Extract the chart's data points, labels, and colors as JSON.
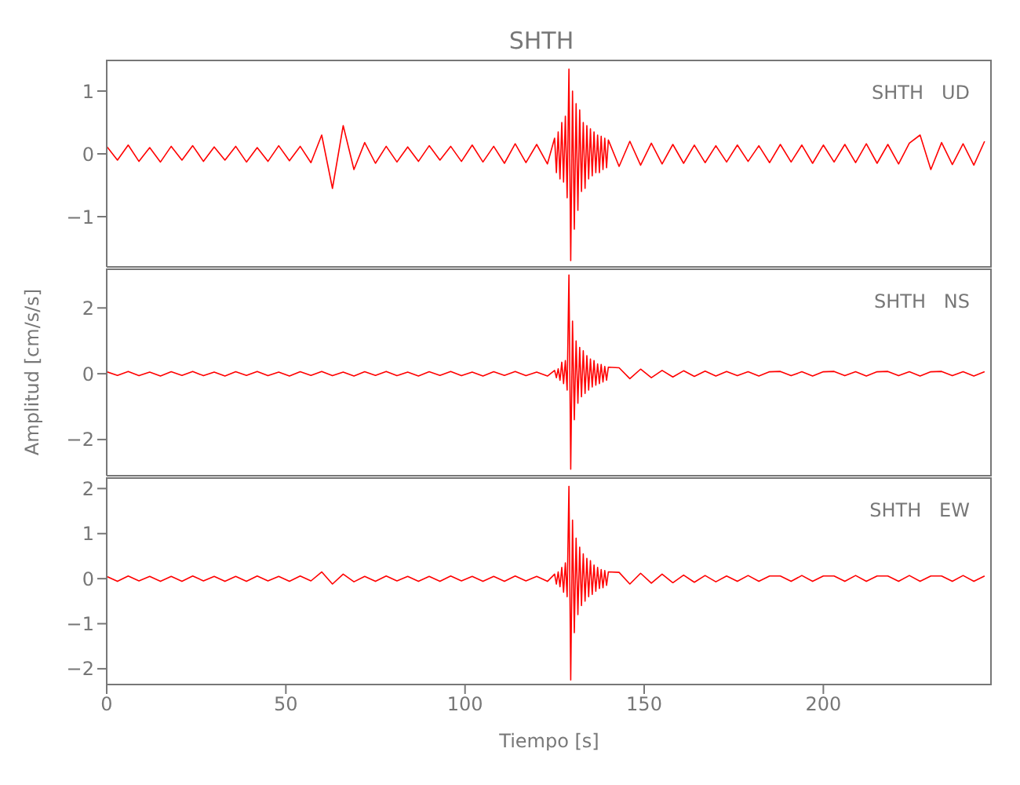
{
  "chart_data": [
    {
      "type": "line",
      "title": "SHTH",
      "annotations": [
        "SHTH   UD"
      ],
      "xlim": [
        0,
        247
      ],
      "xticks": [
        0,
        50,
        100,
        150,
        200
      ],
      "ylim": [
        -1.8,
        1.5
      ],
      "yticks": [
        -1,
        0,
        1
      ],
      "tick_labels": "y",
      "x": [
        0,
        3,
        6,
        9,
        12,
        15,
        18,
        21,
        24,
        27,
        30,
        33,
        36,
        39,
        42,
        45,
        48,
        51,
        54,
        57,
        60,
        63,
        66,
        69,
        72,
        75,
        78,
        81,
        84,
        87,
        90,
        93,
        96,
        99,
        102,
        105,
        108,
        111,
        114,
        117,
        120,
        123,
        125,
        125.5,
        126,
        126.5,
        127,
        127.5,
        128,
        128.5,
        129,
        129.5,
        130,
        130.5,
        131,
        131.5,
        132,
        132.5,
        133,
        133.5,
        134,
        134.5,
        135,
        135.5,
        136,
        136.5,
        137,
        137.5,
        138,
        138.5,
        139,
        139.5,
        140,
        143,
        146,
        149,
        152,
        155,
        158,
        161,
        164,
        167,
        170,
        173,
        176,
        179,
        182,
        185,
        188,
        191,
        194,
        197,
        200,
        203,
        206,
        209,
        212,
        215,
        218,
        221,
        224,
        227,
        230,
        233,
        236,
        239,
        242,
        245
      ],
      "series": [
        {
          "color": "#ff0000",
          "values": [
            0.12,
            -0.1,
            0.14,
            -0.12,
            0.1,
            -0.13,
            0.12,
            -0.1,
            0.13,
            -0.12,
            0.11,
            -0.1,
            0.12,
            -0.13,
            0.1,
            -0.12,
            0.13,
            -0.11,
            0.12,
            -0.14,
            0.3,
            -0.55,
            0.45,
            -0.25,
            0.18,
            -0.15,
            0.12,
            -0.13,
            0.11,
            -0.12,
            0.13,
            -0.1,
            0.12,
            -0.12,
            0.14,
            -0.13,
            0.12,
            -0.15,
            0.16,
            -0.14,
            0.15,
            -0.16,
            0.25,
            -0.3,
            0.35,
            -0.4,
            0.5,
            -0.45,
            0.6,
            -0.7,
            1.35,
            -1.7,
            1.0,
            -1.2,
            0.8,
            -0.9,
            0.7,
            -0.6,
            0.5,
            -0.55,
            0.45,
            -0.4,
            0.4,
            -0.35,
            0.35,
            -0.3,
            0.3,
            -0.3,
            0.28,
            -0.25,
            0.25,
            -0.22,
            0.22,
            -0.2,
            0.2,
            -0.18,
            0.17,
            -0.16,
            0.15,
            -0.15,
            0.14,
            -0.14,
            0.13,
            -0.13,
            0.14,
            -0.12,
            0.13,
            -0.14,
            0.15,
            -0.13,
            0.14,
            -0.15,
            0.14,
            -0.13,
            0.15,
            -0.14,
            0.16,
            -0.15,
            0.15,
            -0.16,
            0.17,
            0.3,
            -0.25,
            0.18,
            -0.17,
            0.16,
            -0.18,
            0.2
          ]
        }
      ]
    },
    {
      "type": "line",
      "ylabel": "Amplitud [cm/s/s]",
      "annotations": [
        "SHTH   NS"
      ],
      "xlim": [
        0,
        247
      ],
      "xticks": [
        0,
        50,
        100,
        150,
        200
      ],
      "ylim": [
        -3.1,
        3.2
      ],
      "yticks": [
        -2,
        0,
        2
      ],
      "tick_labels": "y",
      "x": [
        0,
        3,
        6,
        9,
        12,
        15,
        18,
        21,
        24,
        27,
        30,
        33,
        36,
        39,
        42,
        45,
        48,
        51,
        54,
        57,
        60,
        63,
        66,
        69,
        72,
        75,
        78,
        81,
        84,
        87,
        90,
        93,
        96,
        99,
        102,
        105,
        108,
        111,
        114,
        117,
        120,
        123,
        125,
        125.5,
        126,
        126.5,
        127,
        127.5,
        128,
        128.5,
        129,
        129.5,
        130,
        130.5,
        131,
        131.5,
        132,
        132.5,
        133,
        133.5,
        134,
        134.5,
        135,
        135.5,
        136,
        136.5,
        137,
        137.5,
        138,
        138.5,
        139,
        139.5,
        140,
        143,
        146,
        149,
        152,
        155,
        158,
        161,
        164,
        167,
        170,
        173,
        176,
        179,
        182,
        185,
        188,
        191,
        194,
        197,
        200,
        203,
        206,
        209,
        212,
        215,
        218,
        221,
        224,
        227,
        230,
        233,
        236,
        239,
        242,
        245
      ],
      "series": [
        {
          "color": "#ff0000",
          "values": [
            0.06,
            -0.05,
            0.07,
            -0.06,
            0.05,
            -0.07,
            0.06,
            -0.05,
            0.07,
            -0.06,
            0.05,
            -0.07,
            0.06,
            -0.05,
            0.07,
            -0.06,
            0.05,
            -0.07,
            0.06,
            -0.05,
            0.07,
            -0.06,
            0.05,
            -0.07,
            0.06,
            -0.05,
            0.07,
            -0.06,
            0.05,
            -0.07,
            0.06,
            -0.05,
            0.07,
            -0.06,
            0.05,
            -0.07,
            0.06,
            -0.05,
            0.07,
            -0.06,
            0.05,
            -0.07,
            0.1,
            -0.12,
            0.15,
            -0.2,
            0.35,
            -0.3,
            0.4,
            -0.5,
            3.0,
            -2.9,
            1.6,
            -1.4,
            1.0,
            -0.9,
            0.8,
            -0.7,
            0.7,
            -0.6,
            0.55,
            -0.5,
            0.45,
            -0.4,
            0.4,
            -0.35,
            0.3,
            -0.3,
            0.28,
            -0.25,
            0.22,
            -0.2,
            0.2,
            0.18,
            -0.15,
            0.14,
            -0.12,
            0.1,
            -0.1,
            0.09,
            -0.08,
            0.08,
            -0.07,
            0.07,
            -0.06,
            0.06,
            -0.07,
            0.06,
            0.07,
            -0.06,
            0.06,
            -0.07,
            0.06,
            0.07,
            -0.06,
            0.06,
            -0.07,
            0.06,
            0.07,
            -0.06,
            0.06,
            -0.07,
            0.06,
            0.07,
            -0.06,
            0.06,
            -0.07,
            0.06
          ]
        }
      ]
    },
    {
      "type": "line",
      "xlabel": "Tiempo [s]",
      "annotations": [
        "SHTH   EW"
      ],
      "xlim": [
        0,
        247
      ],
      "xticks": [
        0,
        50,
        100,
        150,
        200
      ],
      "ylim": [
        -2.35,
        2.25
      ],
      "yticks": [
        -2,
        -1,
        0,
        1,
        2
      ],
      "x": [
        0,
        3,
        6,
        9,
        12,
        15,
        18,
        21,
        24,
        27,
        30,
        33,
        36,
        39,
        42,
        45,
        48,
        51,
        54,
        57,
        60,
        63,
        66,
        69,
        72,
        75,
        78,
        81,
        84,
        87,
        90,
        93,
        96,
        99,
        102,
        105,
        108,
        111,
        114,
        117,
        120,
        123,
        125,
        125.5,
        126,
        126.5,
        127,
        127.5,
        128,
        128.5,
        129,
        129.5,
        130,
        130.5,
        131,
        131.5,
        132,
        132.5,
        133,
        133.5,
        134,
        134.5,
        135,
        135.5,
        136,
        136.5,
        137,
        137.5,
        138,
        138.5,
        139,
        139.5,
        140,
        143,
        146,
        149,
        152,
        155,
        158,
        161,
        164,
        167,
        170,
        173,
        176,
        179,
        182,
        185,
        188,
        191,
        194,
        197,
        200,
        203,
        206,
        209,
        212,
        215,
        218,
        221,
        224,
        227,
        230,
        233,
        236,
        239,
        242,
        245
      ],
      "series": [
        {
          "color": "#ff0000",
          "values": [
            0.05,
            -0.06,
            0.06,
            -0.05,
            0.05,
            -0.06,
            0.05,
            -0.06,
            0.06,
            -0.05,
            0.05,
            -0.06,
            0.05,
            -0.06,
            0.06,
            -0.05,
            0.05,
            -0.06,
            0.06,
            -0.05,
            0.15,
            -0.12,
            0.1,
            -0.07,
            0.05,
            -0.06,
            0.06,
            -0.05,
            0.05,
            -0.06,
            0.05,
            -0.06,
            0.06,
            -0.05,
            0.05,
            -0.06,
            0.05,
            -0.06,
            0.06,
            -0.05,
            0.05,
            -0.06,
            0.1,
            -0.12,
            0.15,
            -0.18,
            0.25,
            -0.3,
            0.35,
            -0.4,
            2.05,
            -2.25,
            1.3,
            -1.2,
            0.9,
            -0.8,
            0.7,
            -0.6,
            0.55,
            -0.5,
            0.45,
            -0.4,
            0.4,
            -0.35,
            0.3,
            -0.28,
            0.25,
            -0.22,
            0.2,
            -0.2,
            0.18,
            -0.15,
            0.15,
            0.14,
            -0.12,
            0.12,
            -0.1,
            0.1,
            -0.09,
            0.08,
            -0.08,
            0.07,
            -0.07,
            0.06,
            -0.06,
            0.07,
            -0.06,
            0.06,
            0.06,
            -0.06,
            0.07,
            -0.06,
            0.06,
            0.06,
            -0.06,
            0.07,
            -0.06,
            0.06,
            0.06,
            -0.06,
            0.07,
            -0.06,
            0.06,
            0.06,
            -0.06,
            0.07,
            -0.06,
            0.06
          ]
        }
      ]
    }
  ]
}
